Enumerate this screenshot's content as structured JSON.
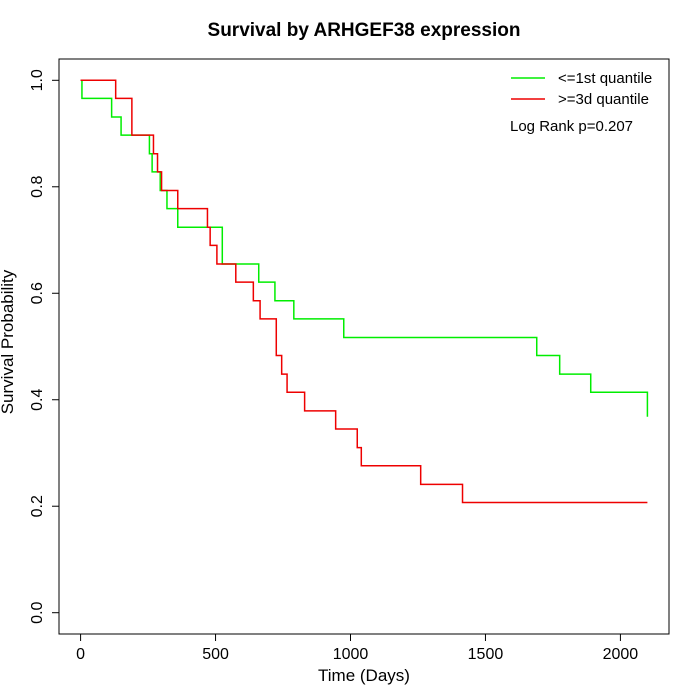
{
  "chart_data": {
    "type": "line",
    "title": "Survival by ARHGEF38 expression",
    "xlabel": "Time (Days)",
    "ylabel": "Survival Probability",
    "xlim": [
      -80,
      2180
    ],
    "ylim": [
      -0.04,
      1.04
    ],
    "x_ticks": [
      0,
      500,
      1000,
      1500,
      2000
    ],
    "y_ticks": [
      0.0,
      0.2,
      0.4,
      0.6,
      0.8,
      1.0
    ],
    "x_tick_labels": [
      "0",
      "500",
      "1000",
      "1500",
      "2000"
    ],
    "y_tick_labels": [
      "0.0",
      "0.2",
      "0.4",
      "0.6",
      "0.8",
      "1.0"
    ],
    "grid": false,
    "legend_position": "top-right",
    "annotation": "Log Rank p=0.207",
    "series": [
      {
        "name": "<=1st quantile",
        "color": "#00ee00",
        "x": [
          0,
          5,
          115,
          150,
          255,
          265,
          295,
          320,
          360,
          525,
          660,
          720,
          790,
          975,
          1690,
          1775,
          1890,
          2100
        ],
        "y": [
          1.0,
          0.966,
          0.931,
          0.897,
          0.862,
          0.828,
          0.793,
          0.759,
          0.724,
          0.655,
          0.621,
          0.586,
          0.552,
          0.517,
          0.483,
          0.448,
          0.414,
          0.368
        ]
      },
      {
        "name": ">=3d quantile",
        "color": "#ee0000",
        "x": [
          0,
          130,
          190,
          270,
          285,
          300,
          360,
          470,
          480,
          505,
          575,
          640,
          665,
          725,
          745,
          765,
          830,
          945,
          1025,
          1040,
          1260,
          1415,
          2100
        ],
        "y": [
          1.0,
          0.966,
          0.897,
          0.862,
          0.828,
          0.793,
          0.759,
          0.724,
          0.69,
          0.655,
          0.621,
          0.586,
          0.552,
          0.483,
          0.448,
          0.414,
          0.379,
          0.345,
          0.31,
          0.276,
          0.241,
          0.207,
          0.207
        ]
      }
    ]
  }
}
